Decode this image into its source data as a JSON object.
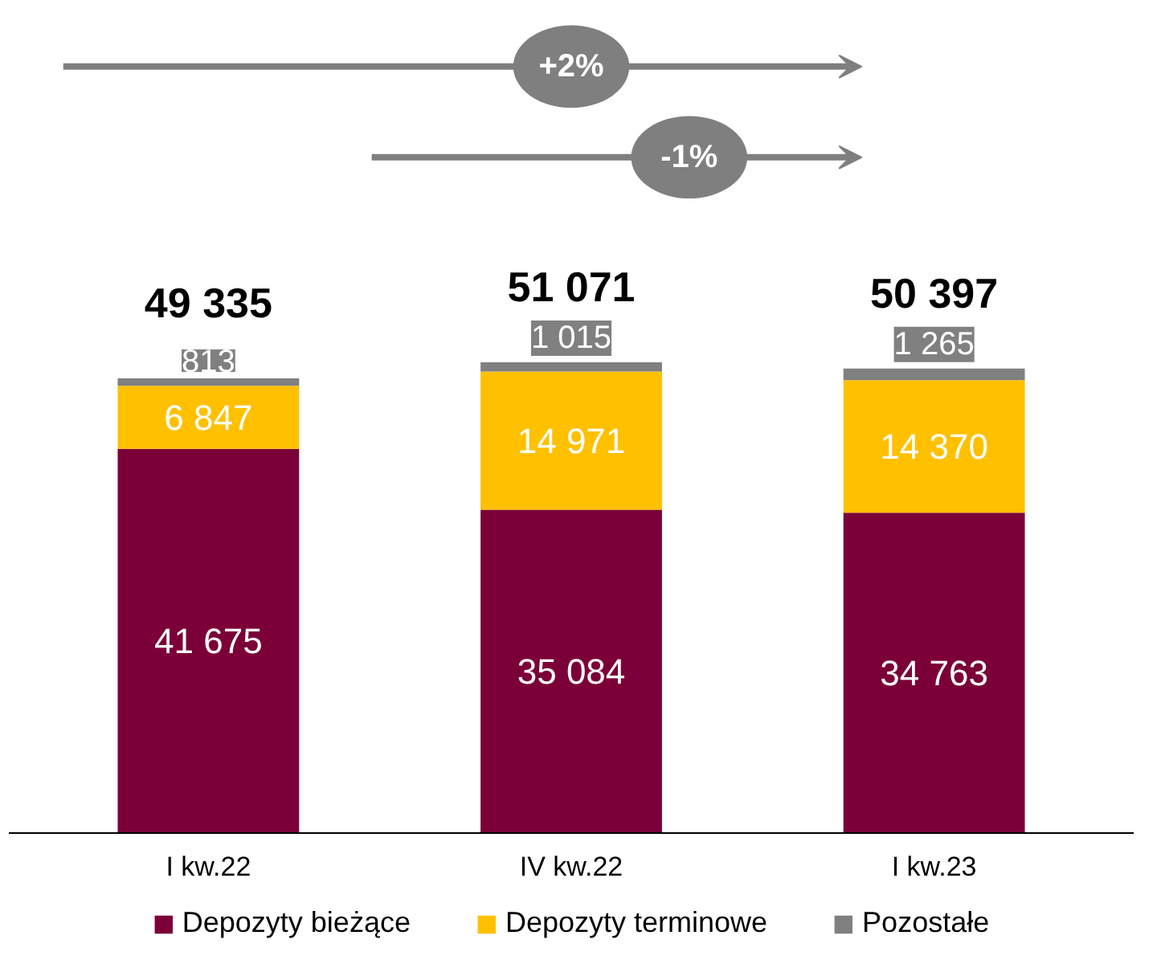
{
  "chart_data": {
    "type": "bar",
    "stacked": true,
    "categories": [
      "I kw.22",
      "IV kw.22",
      "I kw.23"
    ],
    "series": [
      {
        "name": "Depozyty bieżące",
        "color": "#7b0037",
        "values": [
          41675,
          35084,
          34763
        ],
        "value_labels": [
          "41 675",
          "35 084",
          "34 763"
        ]
      },
      {
        "name": "Depozyty terminowe",
        "color": "#ffc000",
        "values": [
          6847,
          14971,
          14370
        ],
        "value_labels": [
          "6 847",
          "14 971",
          "14 370"
        ]
      },
      {
        "name": "Pozostałe",
        "color": "#808080",
        "values": [
          813,
          1015,
          1265
        ],
        "value_labels": [
          "813",
          "1 015",
          "1 265"
        ]
      }
    ],
    "totals": [
      "49 335",
      "51 071",
      "50 397"
    ],
    "annotations": [
      "+2%",
      "-1%"
    ],
    "legend": "bottom",
    "grid": false
  }
}
